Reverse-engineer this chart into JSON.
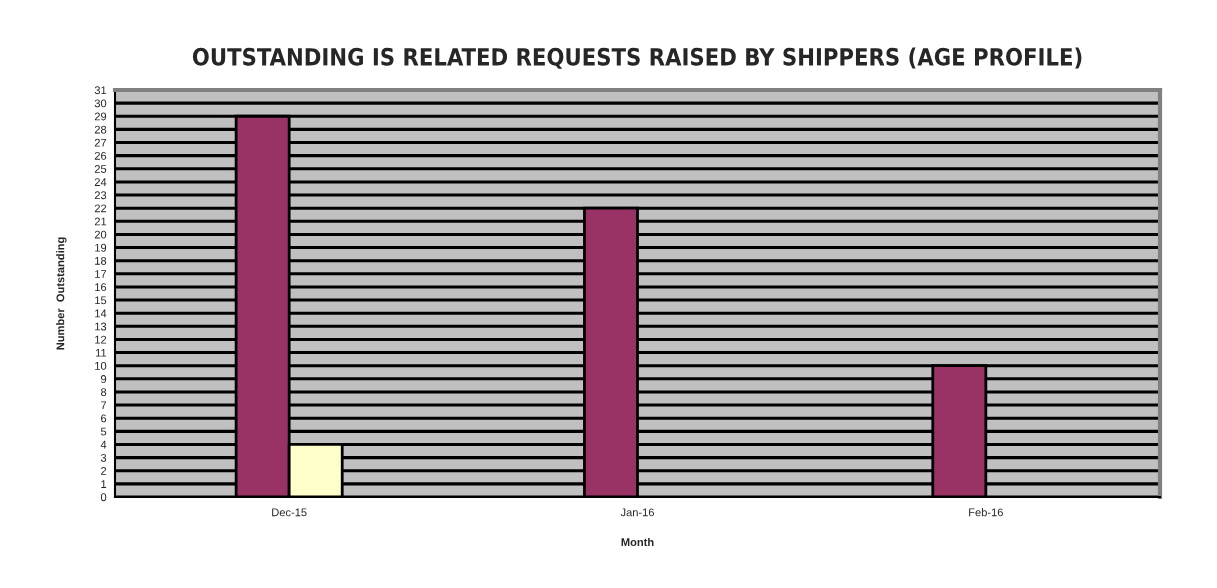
{
  "chart_data": {
    "type": "bar",
    "title": "OUTSTANDING IS RELATED REQUESTS RAISED BY SHIPPERS (AGE PROFILE)",
    "xlabel": "Month",
    "ylabel": "Number  Outstanding",
    "categories": [
      "Dec-15",
      "Jan-16",
      "Feb-16"
    ],
    "series": [
      {
        "color": "#993366",
        "values": [
          29,
          22,
          10
        ]
      },
      {
        "color": "#ffffcc",
        "values": [
          4,
          null,
          null
        ]
      }
    ],
    "ylim": [
      0,
      31
    ],
    "yticks": [
      0,
      1,
      2,
      3,
      4,
      5,
      6,
      7,
      8,
      9,
      10,
      11,
      12,
      13,
      14,
      15,
      16,
      17,
      18,
      19,
      20,
      21,
      22,
      23,
      24,
      25,
      26,
      27,
      28,
      29,
      30,
      31
    ],
    "grid": "y",
    "legend": false
  }
}
